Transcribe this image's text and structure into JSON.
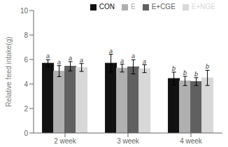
{
  "chart_data": {
    "type": "bar",
    "categories": [
      "2 week",
      "3 week",
      "4 week"
    ],
    "series": [
      {
        "name": "CON",
        "color": "#111111",
        "values": [
          5.7,
          5.7,
          4.45
        ],
        "errors": [
          0.28,
          0.72,
          0.52
        ],
        "labels": [
          "a",
          "a",
          "b"
        ]
      },
      {
        "name": "E",
        "color": "#b0b0b0",
        "values": [
          5.05,
          5.3,
          4.25
        ],
        "errors": [
          0.45,
          0.32,
          0.38
        ],
        "labels": [
          "a",
          "a",
          "b"
        ]
      },
      {
        "name": "E+CGE",
        "color": "#606060",
        "values": [
          5.45,
          5.4,
          4.2
        ],
        "errors": [
          0.38,
          0.58,
          0.32
        ],
        "labels": [
          "a",
          "a",
          "b"
        ]
      },
      {
        "name": "E+NGE",
        "color": "#d8d8d8",
        "values": [
          5.35,
          5.25,
          4.5
        ],
        "errors": [
          0.32,
          0.32,
          0.62
        ],
        "labels": [
          "a",
          "a",
          "b"
        ]
      }
    ],
    "ylabel": "Relative feed intake(g)",
    "ylim": [
      0,
      10
    ],
    "yticks": [
      0,
      2,
      4,
      6,
      8,
      10
    ],
    "legend": "upper right",
    "grid": false
  }
}
